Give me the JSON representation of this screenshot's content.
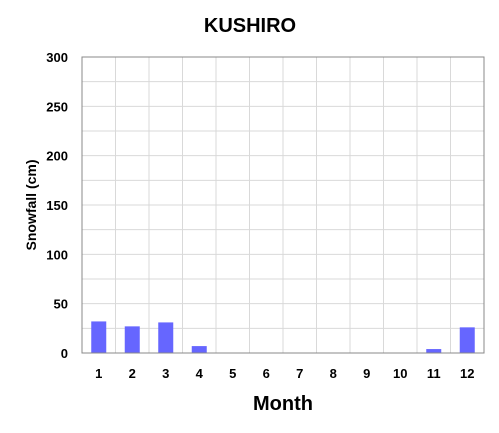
{
  "chart_data": {
    "type": "bar",
    "title": "KUSHIRO",
    "xlabel": "Month",
    "ylabel": "Snowfall (cm)",
    "categories": [
      "1",
      "2",
      "3",
      "4",
      "5",
      "6",
      "7",
      "8",
      "9",
      "10",
      "11",
      "12"
    ],
    "values": [
      32,
      27,
      31,
      7,
      0,
      0,
      0,
      0,
      0,
      0,
      4,
      26
    ],
    "ylim": [
      0,
      300
    ],
    "yticks": [
      "0",
      "50",
      "100",
      "150",
      "200",
      "250",
      "300"
    ],
    "grid": true,
    "bar_color": "#6666ff",
    "legend": "none"
  }
}
